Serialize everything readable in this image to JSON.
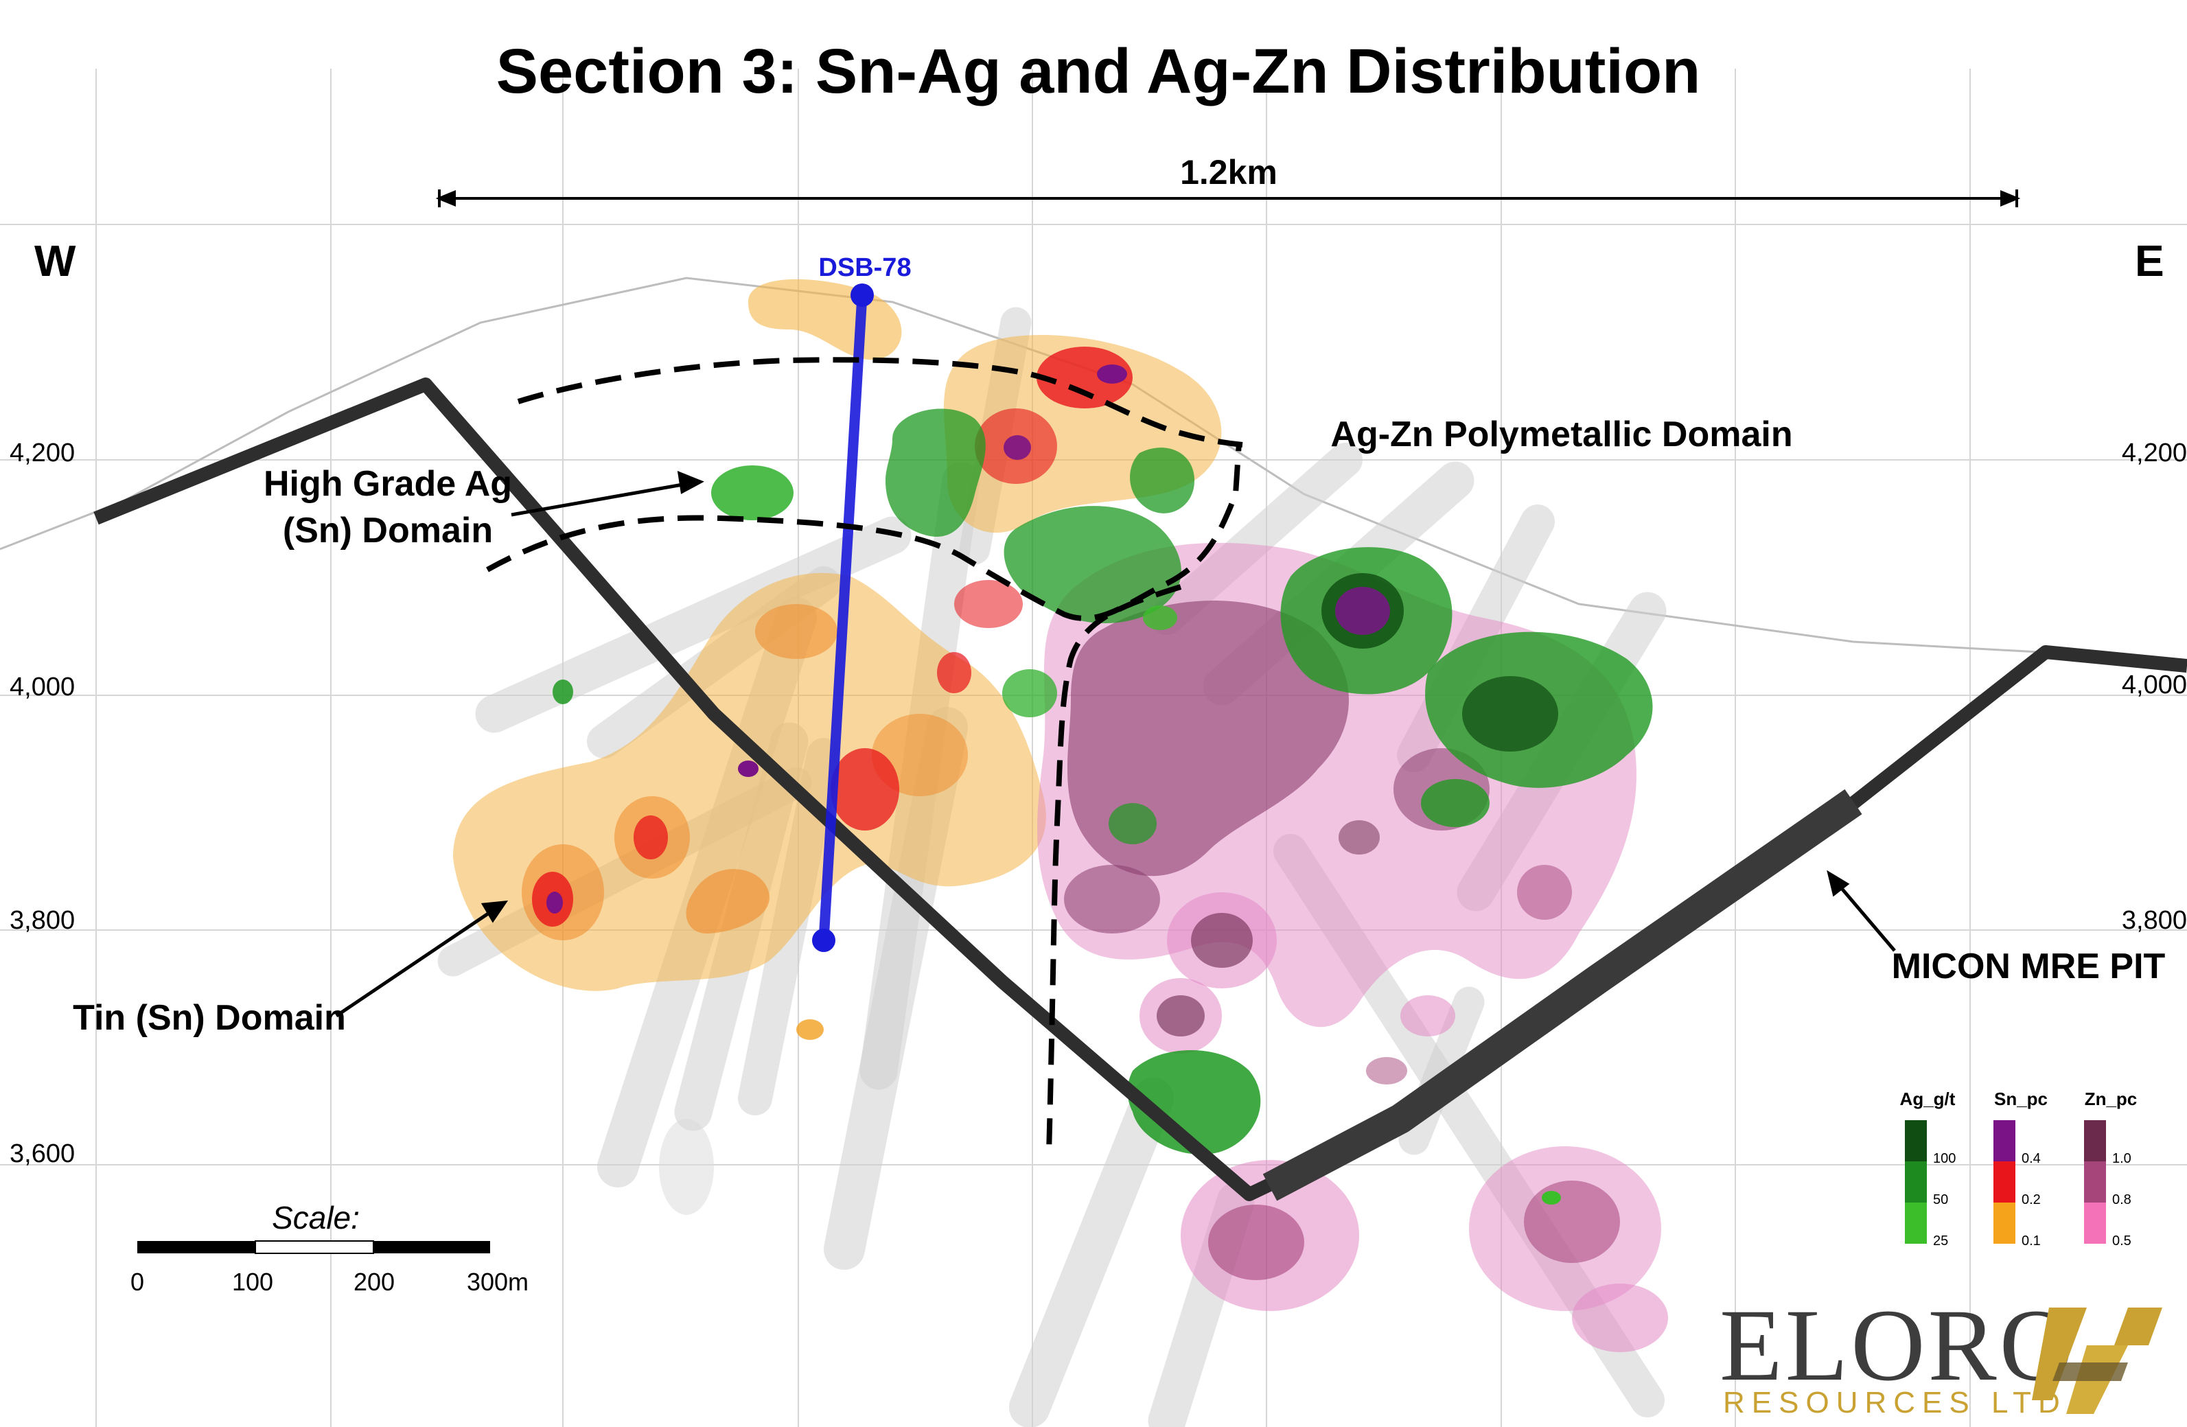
{
  "title": "Section 3: Sn-Ag and Ag-Zn Distribution",
  "directions": {
    "west": "W",
    "east": "E"
  },
  "distance_label": "1.2km",
  "elevations": {
    "left": [
      "4,200",
      "4,000",
      "3,800",
      "3,600"
    ],
    "right": [
      "4,200",
      "4,000",
      "3,800"
    ]
  },
  "drillhole": {
    "name": "DSB-78"
  },
  "domains": {
    "high_grade_line1": "High Grade Ag",
    "high_grade_line2": "(Sn) Domain",
    "ag_zn": "Ag-Zn Polymetallic Domain",
    "tin": "Tin (Sn) Domain",
    "pit": "MICON MRE PIT"
  },
  "legend": {
    "columns": [
      {
        "header": "Ag_g/t",
        "ticks": [
          "100",
          "50",
          "25"
        ],
        "colors": [
          "#0f4d12",
          "#1d8a1f",
          "#3cbe2a"
        ]
      },
      {
        "header": "Sn_pc",
        "ticks": [
          "0.4",
          "0.2",
          "0.1"
        ],
        "colors": [
          "#7a1486",
          "#e8151b",
          "#f5a31a"
        ]
      },
      {
        "header": "Zn_pc",
        "ticks": [
          "1.0",
          "0.8",
          "0.5"
        ],
        "colors": [
          "#6b2a4c",
          "#a6457a",
          "#f472b8"
        ]
      }
    ]
  },
  "scale": {
    "title": "Scale:",
    "ticks": [
      "0",
      "100",
      "200",
      "300m"
    ]
  },
  "logo": {
    "name": "ELORO",
    "sub": "RESOURCES LTD."
  },
  "colors": {
    "drillhole": "#1a1adb",
    "pit": "#2e2e2e",
    "tin_domain": "#f3b54a",
    "ag_domain": "#1f9a22",
    "zn_domain": "#e48ac6"
  }
}
